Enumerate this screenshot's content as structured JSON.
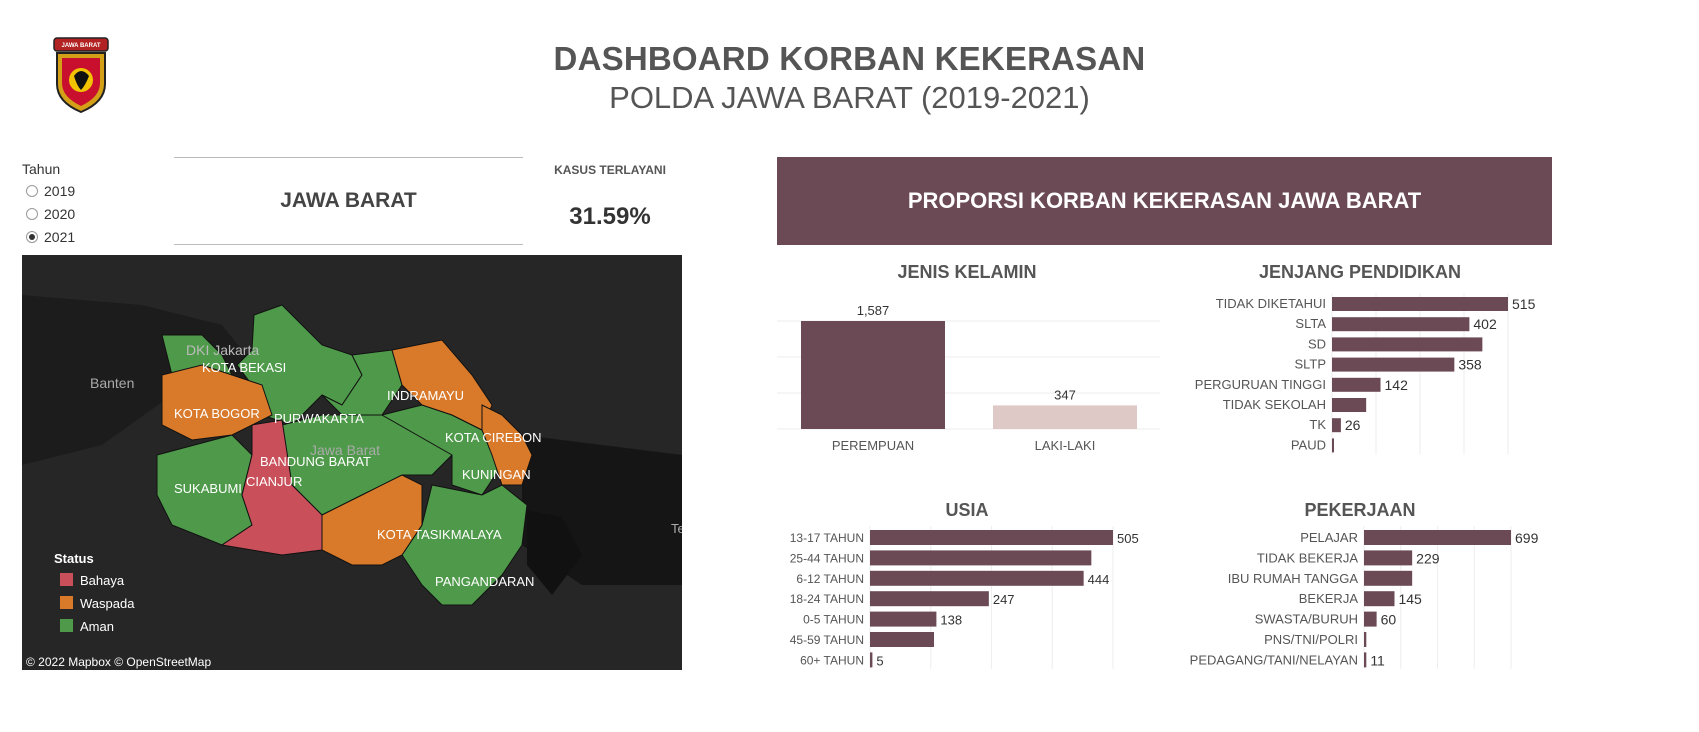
{
  "header": {
    "title": "DASHBOARD KORBAN KEKERASAN",
    "subtitle": "POLDA JAWA BARAT (2019-2021)",
    "logo_text": "JAWA BARAT"
  },
  "filters": {
    "label": "Tahun",
    "options": [
      "2019",
      "2020",
      "2021"
    ],
    "selected": "2021"
  },
  "region": {
    "name": "JAWA BARAT"
  },
  "kpi": {
    "label": "KASUS TERLAYANI",
    "value": "31.59%"
  },
  "map": {
    "labels": {
      "dki": "DKI Jakarta",
      "banten": "Banten",
      "kota_bekasi": "KOTA BEKASI",
      "kota_bogor": "KOTA BOGOR",
      "purwakarta": "PURWAKARTA",
      "indramayu": "INDRAMAYU",
      "kota_cirebon": "KOTA CIREBON",
      "bandung_barat": "BANDUNG BARAT",
      "jawa_barat_watermark": "Jawa Barat",
      "kuningan": "KUNINGAN",
      "sukabumi": "SUKABUMI",
      "cianjur": "CIANJUR",
      "kota_tasikmalaya": "KOTA TASIKMALAYA",
      "pangandaran": "PANGANDARAN",
      "edge_label": "Te"
    },
    "legend": {
      "title": "Status",
      "items": [
        {
          "label": "Bahaya",
          "color": "#c9505a"
        },
        {
          "label": "Waspada",
          "color": "#d97a2b"
        },
        {
          "label": "Aman",
          "color": "#4e9a4a"
        }
      ]
    },
    "attribution": "© 2022 Mapbox  © OpenStreetMap"
  },
  "proporsi": {
    "title": "PROPORSI KORBAN KEKERASAN JAWA BARAT"
  },
  "colors": {
    "bar": "#6b4a55",
    "bar_light": "#dec9c6",
    "banner": "#6b4a55"
  },
  "chart_data": [
    {
      "type": "bar",
      "title": "JENIS KELAMIN",
      "categories": [
        "PEREMPUAN",
        "LAKI-LAKI"
      ],
      "values": [
        1587,
        347
      ],
      "value_labels": [
        "1,587",
        "347"
      ],
      "colors": [
        "#6b4a55",
        "#dec9c6"
      ]
    },
    {
      "type": "bar",
      "orientation": "horizontal",
      "title": "JENJANG PENDIDIKAN",
      "categories": [
        "TIDAK DIKETAHUI",
        "SLTA",
        "SD",
        "SLTP",
        "PERGURUAN TINGGI",
        "TIDAK SEKOLAH",
        "TK",
        "PAUD"
      ],
      "values": [
        515,
        402,
        440,
        358,
        142,
        100,
        26,
        3
      ],
      "value_labels": [
        "515",
        "402",
        "",
        "358",
        "142",
        "",
        "26",
        ""
      ]
    },
    {
      "type": "bar",
      "orientation": "horizontal",
      "title": "USIA",
      "categories": [
        "13-17 TAHUN",
        "25-44 TAHUN",
        "6-12 TAHUN",
        "18-24 TAHUN",
        "0-5 TAHUN",
        "45-59 TAHUN",
        "60+ TAHUN"
      ],
      "values": [
        505,
        460,
        444,
        247,
        138,
        133,
        5
      ],
      "value_labels": [
        "505",
        "",
        "444",
        "247",
        "138",
        "",
        "5"
      ]
    },
    {
      "type": "bar",
      "orientation": "horizontal",
      "title": "PEKERJAAN",
      "categories": [
        "PELAJAR",
        "TIDAK BEKERJA",
        "IBU RUMAH TANGGA",
        "BEKERJA",
        "SWASTA/BURUH",
        "PNS/TNI/POLRI",
        "PEDAGANG/TANI/NELAYAN"
      ],
      "values": [
        699,
        229,
        229,
        145,
        60,
        11,
        11
      ],
      "value_labels": [
        "699",
        "229",
        "",
        "145",
        "60",
        "",
        "11"
      ]
    }
  ]
}
